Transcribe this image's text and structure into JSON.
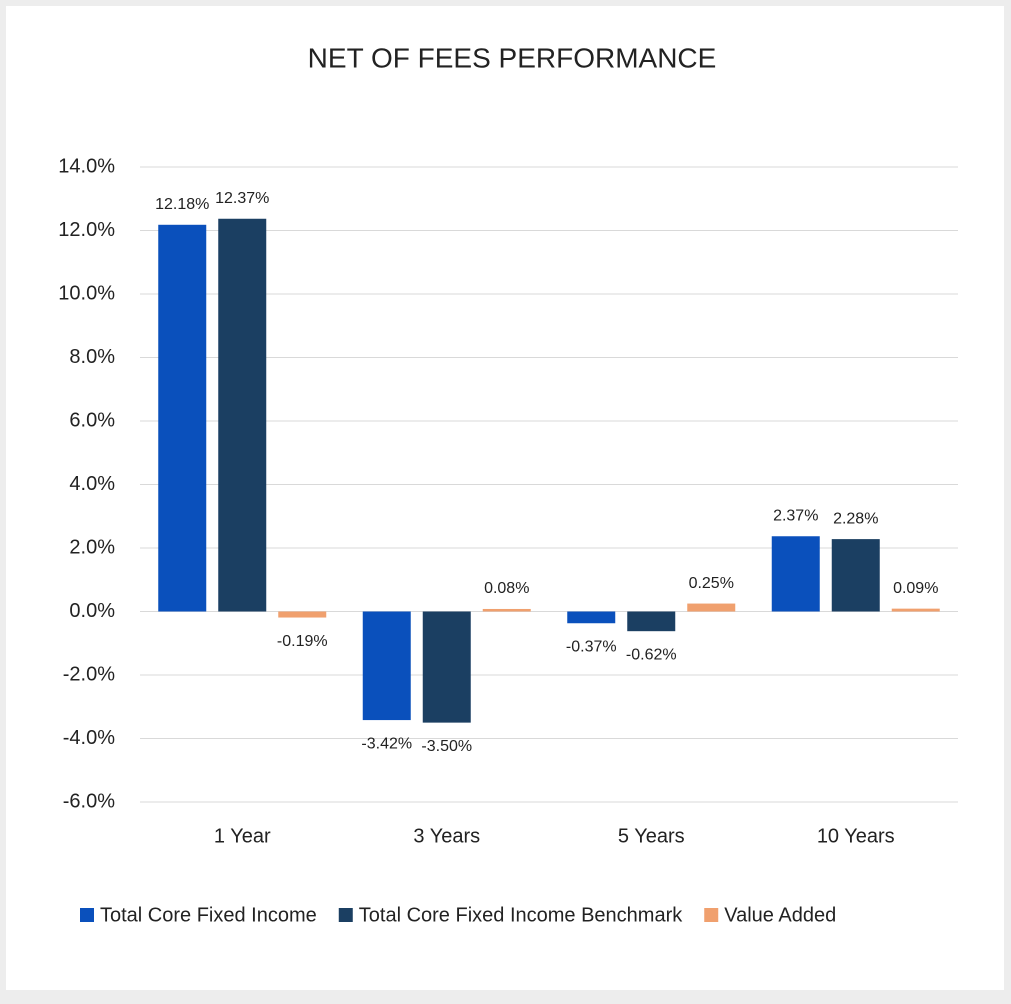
{
  "chart_data": {
    "type": "bar",
    "title": "NET OF FEES PERFORMANCE",
    "categories": [
      "1 Year",
      "3 Years",
      "5 Years",
      "10 Years"
    ],
    "series": [
      {
        "name": "Total Core Fixed Income",
        "color": "#0a50bc",
        "values": [
          12.18,
          -3.42,
          -0.37,
          2.37
        ],
        "value_labels": [
          "12.18%",
          "-3.42%",
          "-0.37%",
          "2.37%"
        ]
      },
      {
        "name": "Total Core Fixed Income Benchmark",
        "color": "#1b3f62",
        "values": [
          12.37,
          -3.5,
          -0.62,
          2.28
        ],
        "value_labels": [
          "12.37%",
          "-3.50%",
          "-0.62%",
          "2.28%"
        ]
      },
      {
        "name": "Value Added",
        "color": "#f0a06e",
        "values": [
          -0.19,
          0.08,
          0.25,
          0.09
        ],
        "value_labels": [
          "-0.19%",
          "0.08%",
          "0.25%",
          "0.09%"
        ]
      }
    ],
    "ylim": [
      -6,
      14
    ],
    "yticks": [
      {
        "value": -6,
        "label": "-6.0%"
      },
      {
        "value": -4,
        "label": "-4.0%"
      },
      {
        "value": -2,
        "label": "-2.0%"
      },
      {
        "value": 0,
        "label": "0.0%"
      },
      {
        "value": 2,
        "label": "2.0%"
      },
      {
        "value": 4,
        "label": "4.0%"
      },
      {
        "value": 6,
        "label": "6.0%"
      },
      {
        "value": 8,
        "label": "8.0%"
      },
      {
        "value": 10,
        "label": "10.0%"
      },
      {
        "value": 12,
        "label": "12.0%"
      },
      {
        "value": 14,
        "label": "14.0%"
      }
    ],
    "grid": true,
    "legend": "bottom"
  }
}
